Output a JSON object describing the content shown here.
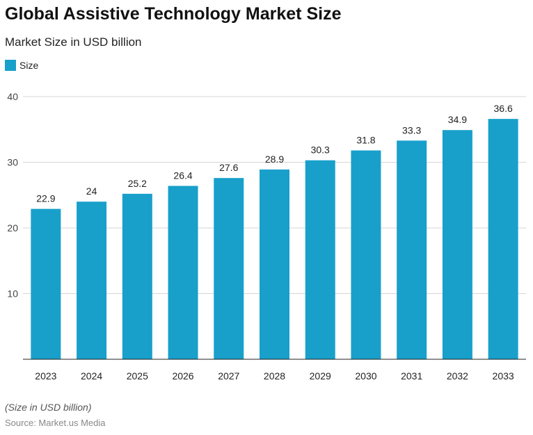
{
  "chart_data": {
    "type": "bar",
    "title": "Global Assistive Technology Market Size",
    "subtitle": "Market Size in USD billion",
    "legend": {
      "entries": [
        "Size"
      ],
      "placement": "top-left"
    },
    "categories": [
      "2023",
      "2024",
      "2025",
      "2026",
      "2027",
      "2028",
      "2029",
      "2030",
      "2031",
      "2032",
      "2033"
    ],
    "series": [
      {
        "name": "Size",
        "values": [
          22.9,
          24,
          25.2,
          26.4,
          27.6,
          28.9,
          30.3,
          31.8,
          33.3,
          34.9,
          36.6
        ],
        "color": "#18a0cb"
      }
    ],
    "ylim": [
      0,
      40
    ],
    "yticks": [
      10,
      20,
      30,
      40
    ],
    "grid": true,
    "xlabel": "",
    "ylabel": ""
  },
  "footer": {
    "note": "(Size in USD billion)",
    "source": "Source: Market.us Media"
  }
}
